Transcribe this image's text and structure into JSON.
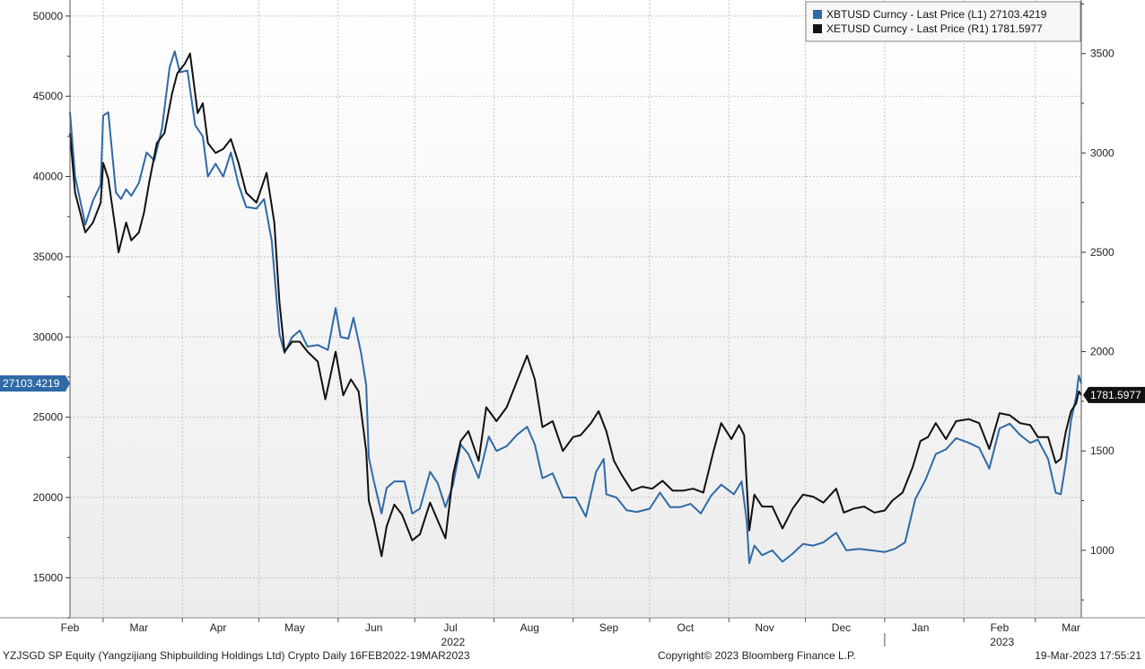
{
  "chart_data": {
    "type": "line",
    "left_axis": {
      "ticks": [
        15000,
        20000,
        25000,
        30000,
        35000,
        40000,
        45000,
        50000
      ],
      "range": [
        12500,
        51000
      ]
    },
    "right_axis": {
      "ticks": [
        1000,
        1500,
        2000,
        2500,
        3000,
        3500
      ],
      "range": [
        660,
        3770
      ]
    },
    "x_range": [
      "2022-02-16",
      "2023-03-19"
    ],
    "x_tick_labels": [
      {
        "date": "2022-02-16",
        "label": "Feb"
      },
      {
        "date": "2022-03-15",
        "label": "Mar"
      },
      {
        "date": "2022-04-15",
        "label": "Apr"
      },
      {
        "date": "2022-05-15",
        "label": "May"
      },
      {
        "date": "2022-06-15",
        "label": "Jun"
      },
      {
        "date": "2022-07-15",
        "label": "Jul"
      },
      {
        "date": "2022-08-15",
        "label": "Aug"
      },
      {
        "date": "2022-09-15",
        "label": "Sep"
      },
      {
        "date": "2022-10-15",
        "label": "Oct"
      },
      {
        "date": "2022-11-15",
        "label": "Nov"
      },
      {
        "date": "2022-12-15",
        "label": "Dec"
      },
      {
        "date": "2023-01-15",
        "label": "Jan"
      },
      {
        "date": "2023-02-15",
        "label": "Feb"
      },
      {
        "date": "2023-03-15",
        "label": "Mar"
      }
    ],
    "month_boundaries": [
      "2022-03-01",
      "2022-04-01",
      "2022-05-01",
      "2022-06-01",
      "2022-07-01",
      "2022-08-01",
      "2022-09-01",
      "2022-10-01",
      "2022-11-01",
      "2022-12-01",
      "2023-01-01",
      "2023-02-01",
      "2023-03-01"
    ],
    "year_labels": [
      {
        "date": "2022-07-16",
        "label": "2022"
      },
      {
        "date": "2023-02-16",
        "label": "2023"
      }
    ],
    "year_divider": "2023-01-01",
    "grid": true,
    "legend_position": "top-right",
    "series": [
      {
        "name": "XBTUSD Curncy - Last Price (L1) 27103.4219",
        "axis": "left",
        "color": "#2f6aa6",
        "last_value_label": "27103.4219",
        "points": [
          [
            "2022-02-16",
            44000
          ],
          [
            "2022-02-18",
            40000
          ],
          [
            "2022-02-20",
            38500
          ],
          [
            "2022-02-22",
            37000
          ],
          [
            "2022-02-25",
            38500
          ],
          [
            "2022-02-28",
            39500
          ],
          [
            "2022-03-01",
            43800
          ],
          [
            "2022-03-03",
            44000
          ],
          [
            "2022-03-06",
            39000
          ],
          [
            "2022-03-08",
            38600
          ],
          [
            "2022-03-10",
            39200
          ],
          [
            "2022-03-12",
            38800
          ],
          [
            "2022-03-15",
            39600
          ],
          [
            "2022-03-18",
            41500
          ],
          [
            "2022-03-21",
            41000
          ],
          [
            "2022-03-24",
            43000
          ],
          [
            "2022-03-27",
            46800
          ],
          [
            "2022-03-29",
            47800
          ],
          [
            "2022-03-31",
            46500
          ],
          [
            "2022-04-03",
            46600
          ],
          [
            "2022-04-06",
            43200
          ],
          [
            "2022-04-09",
            42500
          ],
          [
            "2022-04-11",
            40000
          ],
          [
            "2022-04-14",
            40800
          ],
          [
            "2022-04-17",
            40000
          ],
          [
            "2022-04-20",
            41500
          ],
          [
            "2022-04-23",
            39500
          ],
          [
            "2022-04-26",
            38100
          ],
          [
            "2022-04-30",
            38000
          ],
          [
            "2022-05-03",
            38600
          ],
          [
            "2022-05-06",
            36000
          ],
          [
            "2022-05-09",
            30200
          ],
          [
            "2022-05-11",
            29000
          ],
          [
            "2022-05-14",
            30000
          ],
          [
            "2022-05-17",
            30400
          ],
          [
            "2022-05-20",
            29400
          ],
          [
            "2022-05-24",
            29500
          ],
          [
            "2022-05-28",
            29200
          ],
          [
            "2022-05-31",
            31800
          ],
          [
            "2022-06-02",
            30000
          ],
          [
            "2022-06-05",
            29900
          ],
          [
            "2022-06-07",
            31200
          ],
          [
            "2022-06-10",
            29000
          ],
          [
            "2022-06-12",
            27000
          ],
          [
            "2022-06-13",
            22500
          ],
          [
            "2022-06-15",
            21000
          ],
          [
            "2022-06-18",
            19000
          ],
          [
            "2022-06-20",
            20600
          ],
          [
            "2022-06-23",
            21000
          ],
          [
            "2022-06-27",
            21000
          ],
          [
            "2022-06-30",
            19000
          ],
          [
            "2022-07-03",
            19300
          ],
          [
            "2022-07-07",
            21600
          ],
          [
            "2022-07-10",
            20900
          ],
          [
            "2022-07-13",
            19400
          ],
          [
            "2022-07-16",
            20800
          ],
          [
            "2022-07-19",
            23300
          ],
          [
            "2022-07-22",
            22700
          ],
          [
            "2022-07-26",
            21200
          ],
          [
            "2022-07-30",
            23800
          ],
          [
            "2022-08-02",
            22900
          ],
          [
            "2022-08-06",
            23200
          ],
          [
            "2022-08-10",
            23900
          ],
          [
            "2022-08-14",
            24400
          ],
          [
            "2022-08-17",
            23300
          ],
          [
            "2022-08-20",
            21200
          ],
          [
            "2022-08-24",
            21500
          ],
          [
            "2022-08-28",
            20000
          ],
          [
            "2022-09-02",
            20000
          ],
          [
            "2022-09-06",
            18800
          ],
          [
            "2022-09-10",
            21600
          ],
          [
            "2022-09-13",
            22400
          ],
          [
            "2022-09-14",
            20200
          ],
          [
            "2022-09-18",
            20000
          ],
          [
            "2022-09-22",
            19200
          ],
          [
            "2022-09-26",
            19100
          ],
          [
            "2022-10-01",
            19300
          ],
          [
            "2022-10-05",
            20300
          ],
          [
            "2022-10-09",
            19400
          ],
          [
            "2022-10-13",
            19400
          ],
          [
            "2022-10-17",
            19600
          ],
          [
            "2022-10-21",
            19000
          ],
          [
            "2022-10-25",
            20100
          ],
          [
            "2022-10-29",
            20800
          ],
          [
            "2022-11-03",
            20200
          ],
          [
            "2022-11-06",
            21000
          ],
          [
            "2022-11-08",
            18500
          ],
          [
            "2022-11-09",
            15900
          ],
          [
            "2022-11-11",
            17000
          ],
          [
            "2022-11-14",
            16400
          ],
          [
            "2022-11-18",
            16700
          ],
          [
            "2022-11-22",
            16000
          ],
          [
            "2022-11-26",
            16500
          ],
          [
            "2022-11-30",
            17100
          ],
          [
            "2022-12-04",
            17000
          ],
          [
            "2022-12-08",
            17200
          ],
          [
            "2022-12-13",
            17800
          ],
          [
            "2022-12-17",
            16700
          ],
          [
            "2022-12-22",
            16800
          ],
          [
            "2022-12-27",
            16700
          ],
          [
            "2023-01-01",
            16600
          ],
          [
            "2023-01-05",
            16800
          ],
          [
            "2023-01-09",
            17200
          ],
          [
            "2023-01-13",
            19900
          ],
          [
            "2023-01-17",
            21100
          ],
          [
            "2023-01-21",
            22700
          ],
          [
            "2023-01-25",
            23000
          ],
          [
            "2023-01-29",
            23700
          ],
          [
            "2023-02-03",
            23400
          ],
          [
            "2023-02-07",
            23100
          ],
          [
            "2023-02-11",
            21800
          ],
          [
            "2023-02-15",
            24300
          ],
          [
            "2023-02-19",
            24600
          ],
          [
            "2023-02-23",
            23900
          ],
          [
            "2023-02-27",
            23400
          ],
          [
            "2023-03-02",
            23600
          ],
          [
            "2023-03-06",
            22400
          ],
          [
            "2023-03-09",
            20300
          ],
          [
            "2023-03-11",
            20200
          ],
          [
            "2023-03-13",
            22200
          ],
          [
            "2023-03-15",
            24800
          ],
          [
            "2023-03-17",
            26300
          ],
          [
            "2023-03-18",
            27600
          ],
          [
            "2023-03-19",
            27103.4219
          ]
        ]
      },
      {
        "name": "XETUSD Curncy - Last Price (R1) 1781.5977",
        "axis": "right",
        "color": "#111111",
        "last_value_label": "1781.5977",
        "points": [
          [
            "2022-02-16",
            3100
          ],
          [
            "2022-02-18",
            2800
          ],
          [
            "2022-02-20",
            2700
          ],
          [
            "2022-02-22",
            2600
          ],
          [
            "2022-02-25",
            2650
          ],
          [
            "2022-02-28",
            2750
          ],
          [
            "2022-03-01",
            2950
          ],
          [
            "2022-03-03",
            2870
          ],
          [
            "2022-03-06",
            2600
          ],
          [
            "2022-03-07",
            2500
          ],
          [
            "2022-03-10",
            2650
          ],
          [
            "2022-03-12",
            2560
          ],
          [
            "2022-03-15",
            2600
          ],
          [
            "2022-03-17",
            2700
          ],
          [
            "2022-03-19",
            2850
          ],
          [
            "2022-03-22",
            3050
          ],
          [
            "2022-03-25",
            3100
          ],
          [
            "2022-03-28",
            3300
          ],
          [
            "2022-03-30",
            3400
          ],
          [
            "2022-04-02",
            3450
          ],
          [
            "2022-04-04",
            3500
          ],
          [
            "2022-04-07",
            3200
          ],
          [
            "2022-04-09",
            3250
          ],
          [
            "2022-04-11",
            3050
          ],
          [
            "2022-04-14",
            3000
          ],
          [
            "2022-04-17",
            3020
          ],
          [
            "2022-04-20",
            3070
          ],
          [
            "2022-04-23",
            2950
          ],
          [
            "2022-04-26",
            2800
          ],
          [
            "2022-04-30",
            2750
          ],
          [
            "2022-05-04",
            2900
          ],
          [
            "2022-05-07",
            2650
          ],
          [
            "2022-05-09",
            2250
          ],
          [
            "2022-05-11",
            2000
          ],
          [
            "2022-05-14",
            2050
          ],
          [
            "2022-05-17",
            2050
          ],
          [
            "2022-05-20",
            2000
          ],
          [
            "2022-05-24",
            1950
          ],
          [
            "2022-05-27",
            1760
          ],
          [
            "2022-05-31",
            2000
          ],
          [
            "2022-06-03",
            1780
          ],
          [
            "2022-06-06",
            1860
          ],
          [
            "2022-06-09",
            1800
          ],
          [
            "2022-06-12",
            1500
          ],
          [
            "2022-06-13",
            1250
          ],
          [
            "2022-06-15",
            1150
          ],
          [
            "2022-06-18",
            970
          ],
          [
            "2022-06-20",
            1120
          ],
          [
            "2022-06-23",
            1230
          ],
          [
            "2022-06-26",
            1180
          ],
          [
            "2022-06-30",
            1050
          ],
          [
            "2022-07-03",
            1080
          ],
          [
            "2022-07-07",
            1240
          ],
          [
            "2022-07-10",
            1150
          ],
          [
            "2022-07-13",
            1060
          ],
          [
            "2022-07-16",
            1380
          ],
          [
            "2022-07-19",
            1550
          ],
          [
            "2022-07-22",
            1600
          ],
          [
            "2022-07-26",
            1450
          ],
          [
            "2022-07-29",
            1720
          ],
          [
            "2022-08-02",
            1650
          ],
          [
            "2022-08-06",
            1720
          ],
          [
            "2022-08-10",
            1850
          ],
          [
            "2022-08-14",
            1980
          ],
          [
            "2022-08-17",
            1860
          ],
          [
            "2022-08-20",
            1620
          ],
          [
            "2022-08-24",
            1650
          ],
          [
            "2022-08-28",
            1500
          ],
          [
            "2022-09-01",
            1570
          ],
          [
            "2022-09-04",
            1580
          ],
          [
            "2022-09-08",
            1640
          ],
          [
            "2022-09-11",
            1700
          ],
          [
            "2022-09-14",
            1600
          ],
          [
            "2022-09-17",
            1450
          ],
          [
            "2022-09-20",
            1380
          ],
          [
            "2022-09-24",
            1300
          ],
          [
            "2022-09-28",
            1320
          ],
          [
            "2022-10-02",
            1310
          ],
          [
            "2022-10-06",
            1350
          ],
          [
            "2022-10-10",
            1300
          ],
          [
            "2022-10-14",
            1300
          ],
          [
            "2022-10-18",
            1310
          ],
          [
            "2022-10-22",
            1290
          ],
          [
            "2022-10-26",
            1500
          ],
          [
            "2022-10-29",
            1640
          ],
          [
            "2022-11-02",
            1560
          ],
          [
            "2022-11-05",
            1630
          ],
          [
            "2022-11-07",
            1580
          ],
          [
            "2022-11-08",
            1330
          ],
          [
            "2022-11-09",
            1100
          ],
          [
            "2022-11-11",
            1280
          ],
          [
            "2022-11-14",
            1220
          ],
          [
            "2022-11-18",
            1220
          ],
          [
            "2022-11-22",
            1110
          ],
          [
            "2022-11-26",
            1210
          ],
          [
            "2022-11-30",
            1280
          ],
          [
            "2022-12-04",
            1270
          ],
          [
            "2022-12-08",
            1240
          ],
          [
            "2022-12-13",
            1310
          ],
          [
            "2022-12-16",
            1190
          ],
          [
            "2022-12-20",
            1210
          ],
          [
            "2022-12-24",
            1220
          ],
          [
            "2022-12-28",
            1190
          ],
          [
            "2023-01-01",
            1200
          ],
          [
            "2023-01-04",
            1250
          ],
          [
            "2023-01-08",
            1290
          ],
          [
            "2023-01-12",
            1420
          ],
          [
            "2023-01-15",
            1550
          ],
          [
            "2023-01-18",
            1570
          ],
          [
            "2023-01-21",
            1640
          ],
          [
            "2023-01-25",
            1560
          ],
          [
            "2023-01-29",
            1650
          ],
          [
            "2023-02-03",
            1660
          ],
          [
            "2023-02-07",
            1640
          ],
          [
            "2023-02-11",
            1510
          ],
          [
            "2023-02-15",
            1690
          ],
          [
            "2023-02-19",
            1680
          ],
          [
            "2023-02-23",
            1640
          ],
          [
            "2023-02-27",
            1630
          ],
          [
            "2023-03-02",
            1570
          ],
          [
            "2023-03-06",
            1570
          ],
          [
            "2023-03-09",
            1440
          ],
          [
            "2023-03-11",
            1460
          ],
          [
            "2023-03-13",
            1600
          ],
          [
            "2023-03-15",
            1700
          ],
          [
            "2023-03-17",
            1740
          ],
          [
            "2023-03-18",
            1800
          ],
          [
            "2023-03-19",
            1781.5977
          ]
        ]
      }
    ]
  },
  "footer": {
    "left": "YZJSGD SP Equity (Yangzijiang Shipbuilding Holdings Ltd) Crypto  Daily 16FEB2022-19MAR2023",
    "center": "Copyright© 2023 Bloomberg Finance L.P.",
    "right": "19-Mar-2023 17:55:21"
  }
}
